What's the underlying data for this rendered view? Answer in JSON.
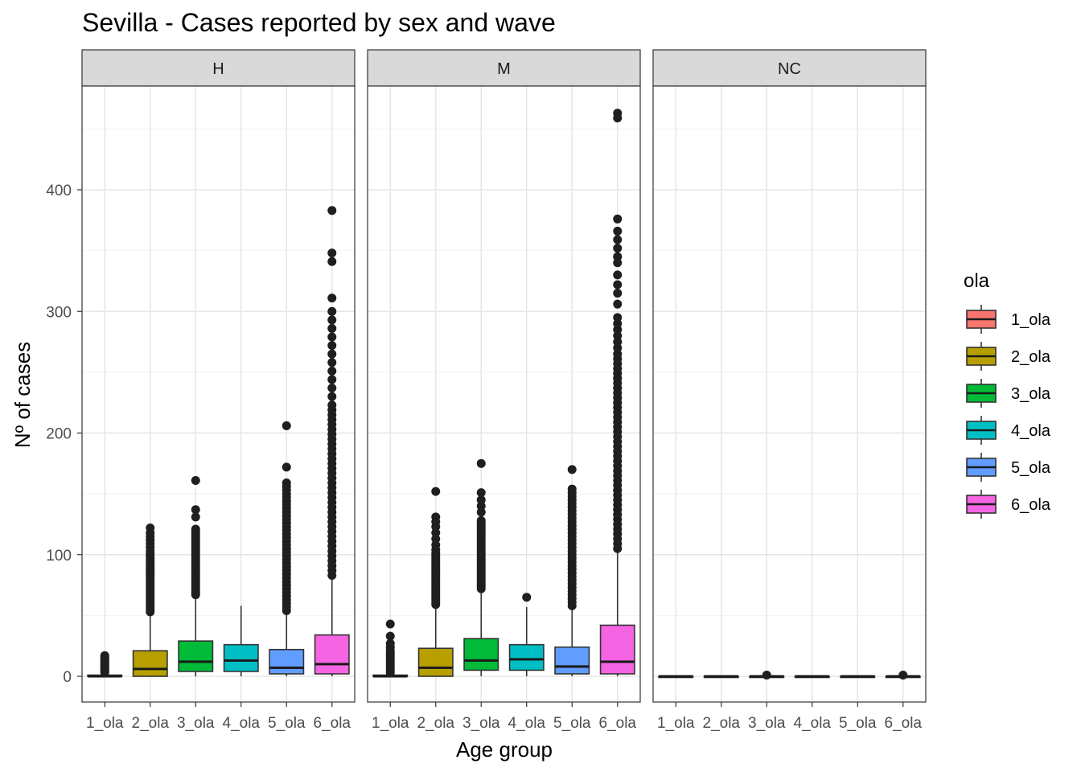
{
  "chart_data": {
    "type": "boxplot",
    "title": "Sevilla - Cases reported by sex and wave",
    "xlabel": "Age group",
    "ylabel": "Nº of cases",
    "ylim": [
      -22,
      485
    ],
    "yticks": [
      0,
      100,
      200,
      300,
      400
    ],
    "grid": true,
    "legend": {
      "title": "ola",
      "placement": "right",
      "entries": [
        {
          "label": "1_ola",
          "color": "#F8766D"
        },
        {
          "label": "2_ola",
          "color": "#B79F00"
        },
        {
          "label": "3_ola",
          "color": "#00BA38"
        },
        {
          "label": "4_ola",
          "color": "#00BFC4"
        },
        {
          "label": "5_ola",
          "color": "#619CFF"
        },
        {
          "label": "6_ola",
          "color": "#F564E3"
        }
      ]
    },
    "categories": [
      "1_ola",
      "2_ola",
      "3_ola",
      "4_ola",
      "5_ola",
      "6_ola"
    ],
    "facets": [
      {
        "label": "H",
        "boxes": [
          {
            "q1": 0,
            "median": 0,
            "q3": 1,
            "lower": 0,
            "upper": 2,
            "outliers": [
              3,
              4,
              5,
              6,
              7,
              8,
              9,
              10,
              11,
              12,
              13,
              14,
              15,
              16,
              17
            ]
          },
          {
            "q1": 0,
            "median": 6,
            "q3": 21,
            "lower": 0,
            "upper": 52,
            "outliers": [
              53,
              55,
              57,
              59,
              61,
              63,
              65,
              67,
              69,
              71,
              73,
              75,
              77,
              79,
              81,
              83,
              85,
              87,
              89,
              91,
              93,
              95,
              97,
              99,
              101,
              103,
              106,
              109,
              112,
              115,
              118,
              122
            ]
          },
          {
            "q1": 4,
            "median": 12,
            "q3": 29,
            "lower": 0,
            "upper": 66,
            "outliers": [
              67,
              69,
              71,
              73,
              75,
              77,
              79,
              81,
              83,
              85,
              87,
              89,
              91,
              93,
              95,
              97,
              99,
              101,
              103,
              105,
              107,
              109,
              111,
              113,
              115,
              117,
              119,
              121,
              131,
              137,
              161
            ]
          },
          {
            "q1": 4,
            "median": 13,
            "q3": 26,
            "lower": 0,
            "upper": 58,
            "outliers": []
          },
          {
            "q1": 2,
            "median": 7,
            "q3": 22,
            "lower": 0,
            "upper": 52,
            "outliers": [
              54,
              57,
              60,
              63,
              66,
              69,
              72,
              75,
              78,
              81,
              84,
              87,
              90,
              93,
              96,
              99,
              102,
              105,
              108,
              111,
              114,
              117,
              120,
              123,
              126,
              129,
              132,
              135,
              138,
              141,
              144,
              147,
              150,
              153,
              156,
              159,
              172,
              206
            ]
          },
          {
            "q1": 2,
            "median": 10,
            "q3": 34,
            "lower": 0,
            "upper": 82,
            "outliers": [
              83,
              87,
              91,
              95,
              99,
              103,
              107,
              111,
              115,
              119,
              123,
              127,
              131,
              135,
              139,
              143,
              147,
              151,
              155,
              159,
              163,
              167,
              171,
              175,
              179,
              183,
              187,
              191,
              195,
              199,
              203,
              207,
              211,
              215,
              219,
              223,
              230,
              237,
              244,
              251,
              258,
              265,
              272,
              279,
              286,
              293,
              300,
              311,
              341,
              348,
              383
            ]
          }
        ]
      },
      {
        "label": "M",
        "boxes": [
          {
            "q1": 0,
            "median": 0,
            "q3": 1,
            "lower": 0,
            "upper": 2,
            "outliers": [
              3,
              5,
              7,
              9,
              11,
              13,
              15,
              17,
              19,
              21,
              24,
              27,
              33,
              43
            ]
          },
          {
            "q1": 0,
            "median": 7,
            "q3": 23,
            "lower": 0,
            "upper": 57,
            "outliers": [
              59,
              61,
              63,
              65,
              67,
              69,
              71,
              73,
              75,
              77,
              79,
              81,
              83,
              85,
              87,
              89,
              91,
              93,
              95,
              97,
              99,
              101,
              104,
              108,
              113,
              118,
              123,
              127,
              131,
              152
            ]
          },
          {
            "q1": 5,
            "median": 13,
            "q3": 31,
            "lower": 0,
            "upper": 71,
            "outliers": [
              72,
              74,
              76,
              78,
              80,
              82,
              84,
              86,
              88,
              90,
              92,
              94,
              96,
              98,
              100,
              102,
              104,
              106,
              108,
              110,
              112,
              114,
              116,
              118,
              120,
              122,
              124,
              126,
              128,
              135,
              140,
              145,
              151,
              175
            ]
          },
          {
            "q1": 5,
            "median": 14,
            "q3": 26,
            "lower": 0,
            "upper": 57,
            "outliers": [
              65
            ]
          },
          {
            "q1": 2,
            "median": 8,
            "q3": 24,
            "lower": 0,
            "upper": 56,
            "outliers": [
              58,
              61,
              64,
              67,
              70,
              73,
              76,
              79,
              82,
              85,
              88,
              91,
              94,
              97,
              100,
              103,
              106,
              109,
              112,
              115,
              118,
              121,
              124,
              127,
              130,
              133,
              136,
              139,
              142,
              145,
              148,
              151,
              154,
              170
            ]
          },
          {
            "q1": 2,
            "median": 12,
            "q3": 42,
            "lower": 0,
            "upper": 103,
            "outliers": [
              105,
              109,
              113,
              117,
              121,
              125,
              129,
              133,
              137,
              141,
              145,
              149,
              153,
              157,
              161,
              165,
              169,
              173,
              177,
              181,
              185,
              189,
              193,
              197,
              201,
              205,
              209,
              213,
              217,
              221,
              225,
              229,
              233,
              237,
              241,
              245,
              249,
              253,
              257,
              261,
              265,
              270,
              275,
              280,
              285,
              290,
              295,
              306,
              315,
              322,
              330,
              340,
              345,
              352,
              359,
              366,
              376,
              459,
              463
            ]
          }
        ]
      },
      {
        "label": "NC",
        "boxes": [
          {
            "q1": 0,
            "median": 0,
            "q3": 0,
            "lower": 0,
            "upper": 0,
            "outliers": []
          },
          {
            "q1": 0,
            "median": 0,
            "q3": 0,
            "lower": 0,
            "upper": 0,
            "outliers": []
          },
          {
            "q1": 0,
            "median": 0,
            "q3": 0,
            "lower": 0,
            "upper": 0,
            "outliers": [
              1
            ]
          },
          {
            "q1": 0,
            "median": 0,
            "q3": 0,
            "lower": 0,
            "upper": 0,
            "outliers": []
          },
          {
            "q1": 0,
            "median": 0,
            "q3": 0,
            "lower": 0,
            "upper": 0,
            "outliers": []
          },
          {
            "q1": 0,
            "median": 0,
            "q3": 0,
            "lower": 0,
            "upper": 0,
            "outliers": [
              1
            ]
          }
        ]
      }
    ]
  }
}
